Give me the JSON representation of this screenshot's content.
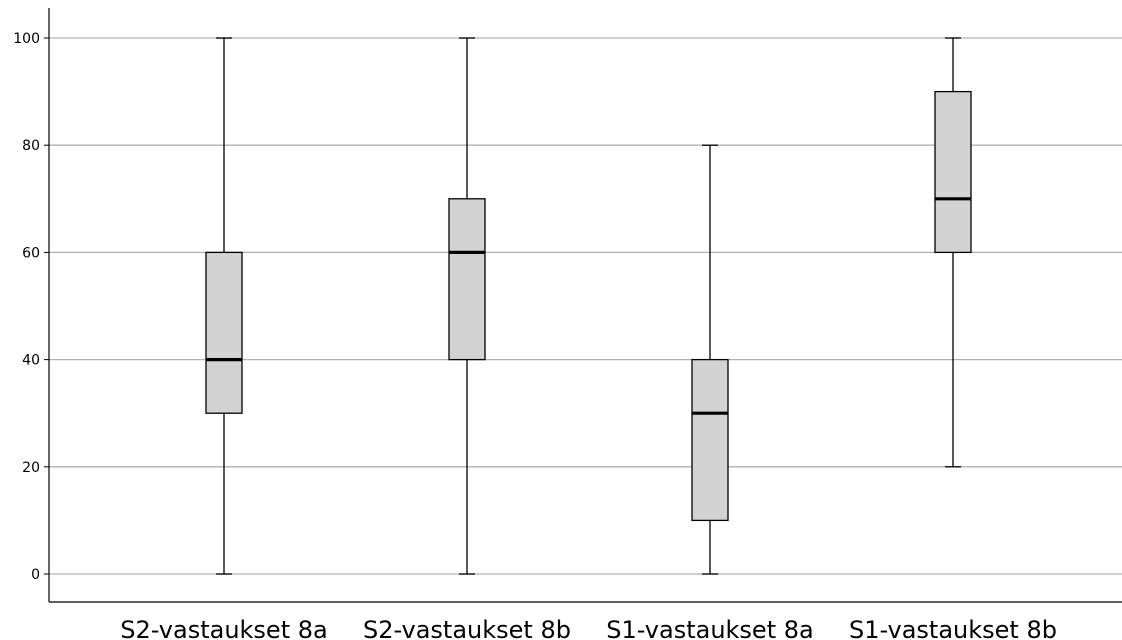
{
  "chart_data": {
    "type": "boxplot",
    "title": "",
    "xlabel": "",
    "ylabel": "",
    "ylim": [
      -5,
      105
    ],
    "yticks": [
      0,
      20,
      40,
      60,
      80,
      100
    ],
    "grid": "horizontal",
    "legend": "none",
    "categories": [
      "S2-vastaukset 8a",
      "S2-vastaukset 8b",
      "S1-vastaukset 8a",
      "S1-vastaukset 8b"
    ],
    "boxes": [
      {
        "min": 0,
        "q1": 30,
        "median": 40,
        "q3": 60,
        "max": 100
      },
      {
        "min": 0,
        "q1": 40,
        "median": 60,
        "q3": 70,
        "max": 100
      },
      {
        "min": 0,
        "q1": 10,
        "median": 30,
        "q3": 40,
        "max": 80
      },
      {
        "min": 20,
        "q1": 60,
        "median": 70,
        "q3": 90,
        "max": 100
      }
    ],
    "colors": {
      "box_fill": "#d3d3d3",
      "box_stroke": "#000000",
      "grid": "#b0b0b0",
      "axis": "#000000"
    }
  }
}
